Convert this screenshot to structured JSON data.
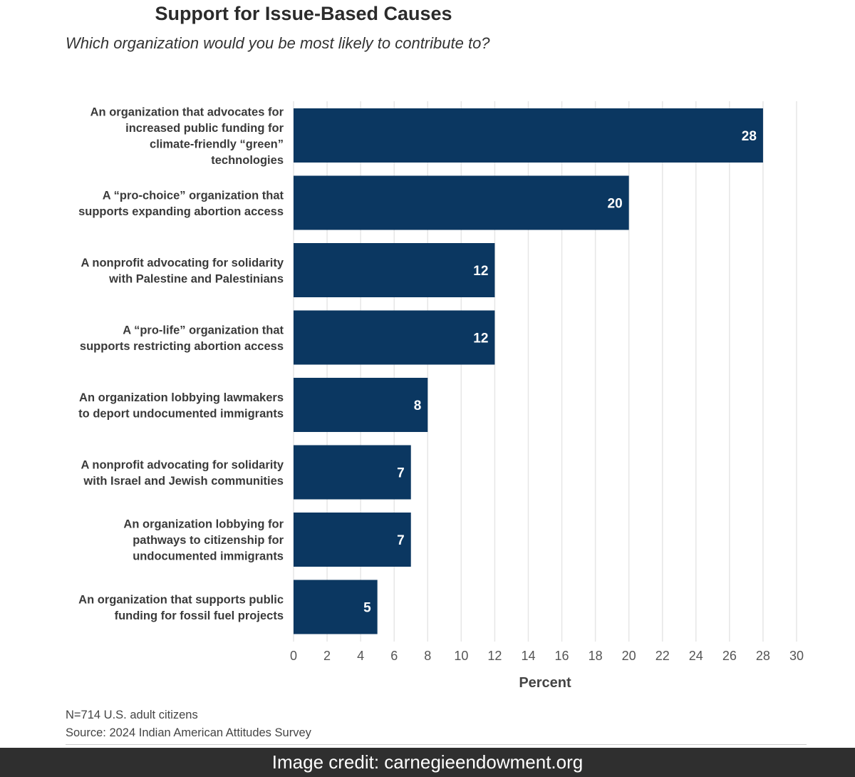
{
  "chart_data": {
    "type": "bar",
    "orientation": "horizontal",
    "title": "Support for Issue-Based Causes",
    "subtitle": "Which organization would you be most likely to contribute to?",
    "categories": [
      [
        "An organization that advocates for",
        "increased public funding for",
        "climate-friendly “green”",
        "technologies"
      ],
      [
        "A “pro-choice” organization that",
        "supports expanding abortion access"
      ],
      [
        "A nonprofit advocating for solidarity",
        "with Palestine and Palestinians"
      ],
      [
        "A “pro-life” organization that",
        "supports restricting abortion access"
      ],
      [
        "An organization lobbying lawmakers",
        "to deport undocumented immigrants"
      ],
      [
        "A nonprofit advocating for solidarity",
        "with Israel and Jewish communities"
      ],
      [
        "An organization lobbying for",
        "pathways to citizenship for",
        "undocumented immigrants"
      ],
      [
        "An organization that supports public",
        "funding for fossil fuel projects"
      ]
    ],
    "values": [
      28,
      20,
      12,
      12,
      8,
      7,
      7,
      5
    ],
    "xlabel": "Percent",
    "xlim": [
      0,
      30
    ],
    "xticks": [
      0,
      2,
      4,
      6,
      8,
      10,
      12,
      14,
      16,
      18,
      20,
      22,
      24,
      26,
      28,
      30
    ],
    "grid": true,
    "data_labels": true,
    "bar_color": "#0b3761",
    "label_color": "#ffffff"
  },
  "notes": {
    "sample": "N=714 U.S. adult citizens",
    "source": "Source: 2024 Indian American Attitudes Survey"
  },
  "credit": "Image credit: carnegieendowment.org"
}
